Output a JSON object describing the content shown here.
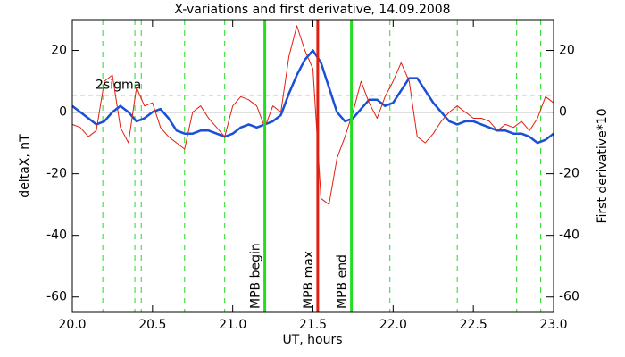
{
  "chart_data": {
    "type": "line",
    "title": "X-variations and first derivative, 14.09.2008",
    "xlabel": "UT, hours",
    "ylabel": "deltaX, nT",
    "y2label": "First derivative*10",
    "ylabel_color": "#1a4fd8",
    "y2label_color": "#e02010",
    "x": [
      20.0,
      20.05,
      20.1,
      20.15,
      20.2,
      20.25,
      20.3,
      20.35,
      20.4,
      20.45,
      20.5,
      20.55,
      20.6,
      20.65,
      20.7,
      20.75,
      20.8,
      20.85,
      20.9,
      20.95,
      21.0,
      21.05,
      21.1,
      21.15,
      21.2,
      21.25,
      21.3,
      21.35,
      21.4,
      21.45,
      21.5,
      21.55,
      21.6,
      21.65,
      21.7,
      21.75,
      21.8,
      21.85,
      21.9,
      21.95,
      22.0,
      22.05,
      22.1,
      22.15,
      22.2,
      22.25,
      22.3,
      22.35,
      22.4,
      22.45,
      22.5,
      22.55,
      22.6,
      22.65,
      22.7,
      22.75,
      22.8,
      22.85,
      22.9,
      22.95,
      23.0
    ],
    "series": [
      {
        "name": "deltaX",
        "color": "#1a4fd8",
        "width": 2.5,
        "axis": "y",
        "values": [
          2,
          0,
          -2,
          -4,
          -3,
          0,
          2,
          0,
          -3,
          -2,
          0,
          1,
          -2,
          -6,
          -7,
          -7,
          -6,
          -6,
          -7,
          -8,
          -7,
          -5,
          -4,
          -5,
          -4,
          -3,
          -1,
          6,
          12,
          17,
          20,
          16,
          8,
          0,
          -3,
          -2,
          1,
          4,
          4,
          2,
          3,
          7,
          11,
          11,
          7,
          3,
          0,
          -3,
          -4,
          -3,
          -3,
          -4,
          -5,
          -6,
          -6,
          -7,
          -7,
          -8,
          -10,
          -9,
          -7
        ]
      },
      {
        "name": "First derivative",
        "color": "#e02010",
        "width": 1,
        "axis": "y2",
        "values": [
          -4,
          -5,
          -8,
          -6,
          10,
          12,
          -5,
          -10,
          8,
          2,
          3,
          -5,
          -8,
          -10,
          -12,
          0,
          2,
          -2,
          -5,
          -8,
          2,
          5,
          4,
          2,
          -5,
          2,
          0,
          18,
          28,
          20,
          14,
          -28,
          -30,
          -15,
          -8,
          0,
          10,
          3,
          -2,
          5,
          10,
          16,
          10,
          -8,
          -10,
          -7,
          -3,
          0,
          2,
          0,
          -2,
          -2,
          -3,
          -6,
          -4,
          -5,
          -3,
          -6,
          -2,
          5,
          3
        ]
      }
    ],
    "xlim": [
      20.0,
      23.0
    ],
    "xticks": [
      {
        "value": 20,
        "label": "20.0"
      },
      20.5,
      {
        "value": 21,
        "label": "21.0"
      },
      21.5,
      {
        "value": 22,
        "label": "22.0"
      },
      22.5,
      {
        "value": 23,
        "label": "23.0"
      }
    ],
    "ylim": [
      -65,
      30
    ],
    "yticks": [
      -60,
      -40,
      -20,
      0,
      20
    ],
    "y2lim": [
      -65,
      30
    ],
    "y2ticks": [
      -60,
      -40,
      -20,
      0,
      20
    ],
    "threshold": {
      "label": "2sigma",
      "value": 5.5
    },
    "dashed_lines": {
      "color": "#22dd22",
      "x": [
        20.19,
        20.39,
        20.43,
        20.7,
        20.95,
        21.98,
        22.4,
        22.77,
        22.92
      ]
    },
    "events": [
      {
        "label": "MPB begin",
        "x": 21.2,
        "color": "#22dd22"
      },
      {
        "label": "MPB max",
        "x": 21.53,
        "color": "#e02010"
      },
      {
        "label": "MPB end",
        "x": 21.74,
        "color": "#22dd22"
      }
    ]
  }
}
